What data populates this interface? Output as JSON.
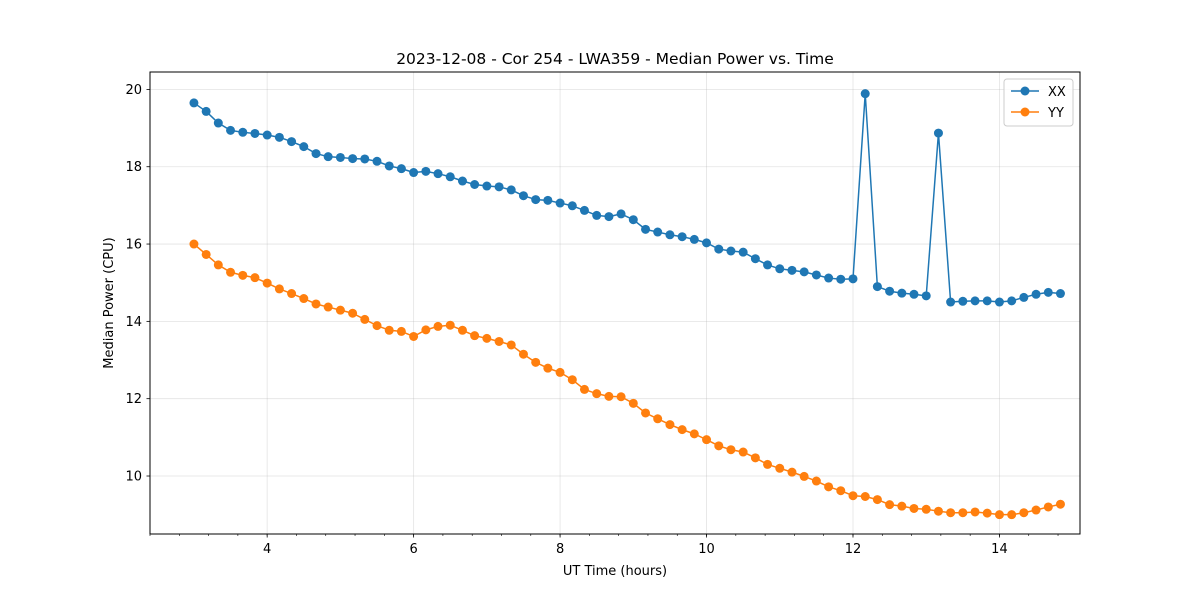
{
  "chart_data": {
    "type": "line",
    "title": "2023-12-08 - Cor 254 - LWA359 - Median Power vs. Time",
    "xlabel": "UT Time (hours)",
    "ylabel": "Median Power (CPU)",
    "xlim": [
      2.4,
      15.1
    ],
    "ylim": [
      8.5,
      20.45
    ],
    "xticks": [
      4,
      6,
      8,
      10,
      12,
      14
    ],
    "yticks": [
      10,
      12,
      14,
      16,
      18,
      20
    ],
    "x_minor_step": 0.4,
    "grid": true,
    "legend_position": "top-right",
    "x": [
      3.0,
      3.167,
      3.333,
      3.5,
      3.667,
      3.833,
      4.0,
      4.167,
      4.333,
      4.5,
      4.667,
      4.833,
      5.0,
      5.167,
      5.333,
      5.5,
      5.667,
      5.833,
      6.0,
      6.167,
      6.333,
      6.5,
      6.667,
      6.833,
      7.0,
      7.167,
      7.333,
      7.5,
      7.667,
      7.833,
      8.0,
      8.167,
      8.333,
      8.5,
      8.667,
      8.833,
      9.0,
      9.167,
      9.333,
      9.5,
      9.667,
      9.833,
      10.0,
      10.167,
      10.333,
      10.5,
      10.667,
      10.833,
      11.0,
      11.167,
      11.333,
      11.5,
      11.667,
      11.833,
      12.0,
      12.167,
      12.333,
      12.5,
      12.667,
      12.833,
      13.0,
      13.167,
      13.333,
      13.5,
      13.667,
      13.833,
      14.0,
      14.167,
      14.333,
      14.5,
      14.667,
      14.833
    ],
    "series": [
      {
        "name": "XX",
        "color": "#1f77b4",
        "values": [
          19.65,
          19.43,
          19.13,
          18.94,
          18.89,
          18.86,
          18.82,
          18.76,
          18.65,
          18.52,
          18.34,
          18.26,
          18.24,
          18.21,
          18.2,
          18.14,
          18.02,
          17.95,
          17.85,
          17.88,
          17.82,
          17.74,
          17.63,
          17.54,
          17.5,
          17.48,
          17.4,
          17.25,
          17.15,
          17.13,
          17.06,
          16.99,
          16.87,
          16.74,
          16.71,
          16.78,
          16.63,
          16.38,
          16.31,
          16.24,
          16.19,
          16.12,
          16.03,
          15.87,
          15.82,
          15.79,
          15.62,
          15.46,
          15.36,
          15.32,
          15.28,
          15.2,
          15.12,
          15.09,
          15.1,
          19.89,
          14.9,
          14.78,
          14.73,
          14.7,
          14.66,
          18.87,
          14.5,
          14.52,
          14.53,
          14.53,
          14.5,
          14.53,
          14.62,
          14.7,
          14.75,
          14.72
        ]
      },
      {
        "name": "YY",
        "color": "#ff7f0e",
        "values": [
          16.0,
          15.73,
          15.46,
          15.27,
          15.19,
          15.13,
          14.99,
          14.84,
          14.72,
          14.59,
          14.45,
          14.37,
          14.29,
          14.21,
          14.05,
          13.89,
          13.77,
          13.74,
          13.61,
          13.78,
          13.87,
          13.9,
          13.77,
          13.63,
          13.56,
          13.48,
          13.39,
          13.15,
          12.94,
          12.79,
          12.68,
          12.49,
          12.24,
          12.13,
          12.06,
          12.05,
          11.88,
          11.63,
          11.48,
          11.33,
          11.2,
          11.09,
          10.94,
          10.78,
          10.68,
          10.62,
          10.47,
          10.3,
          10.2,
          10.1,
          9.99,
          9.87,
          9.72,
          9.62,
          9.49,
          9.47,
          9.39,
          9.26,
          9.22,
          9.16,
          9.14,
          9.09,
          9.05,
          9.05,
          9.07,
          9.04,
          9.0,
          9.0,
          9.05,
          9.12,
          9.2,
          9.27
        ]
      }
    ]
  }
}
